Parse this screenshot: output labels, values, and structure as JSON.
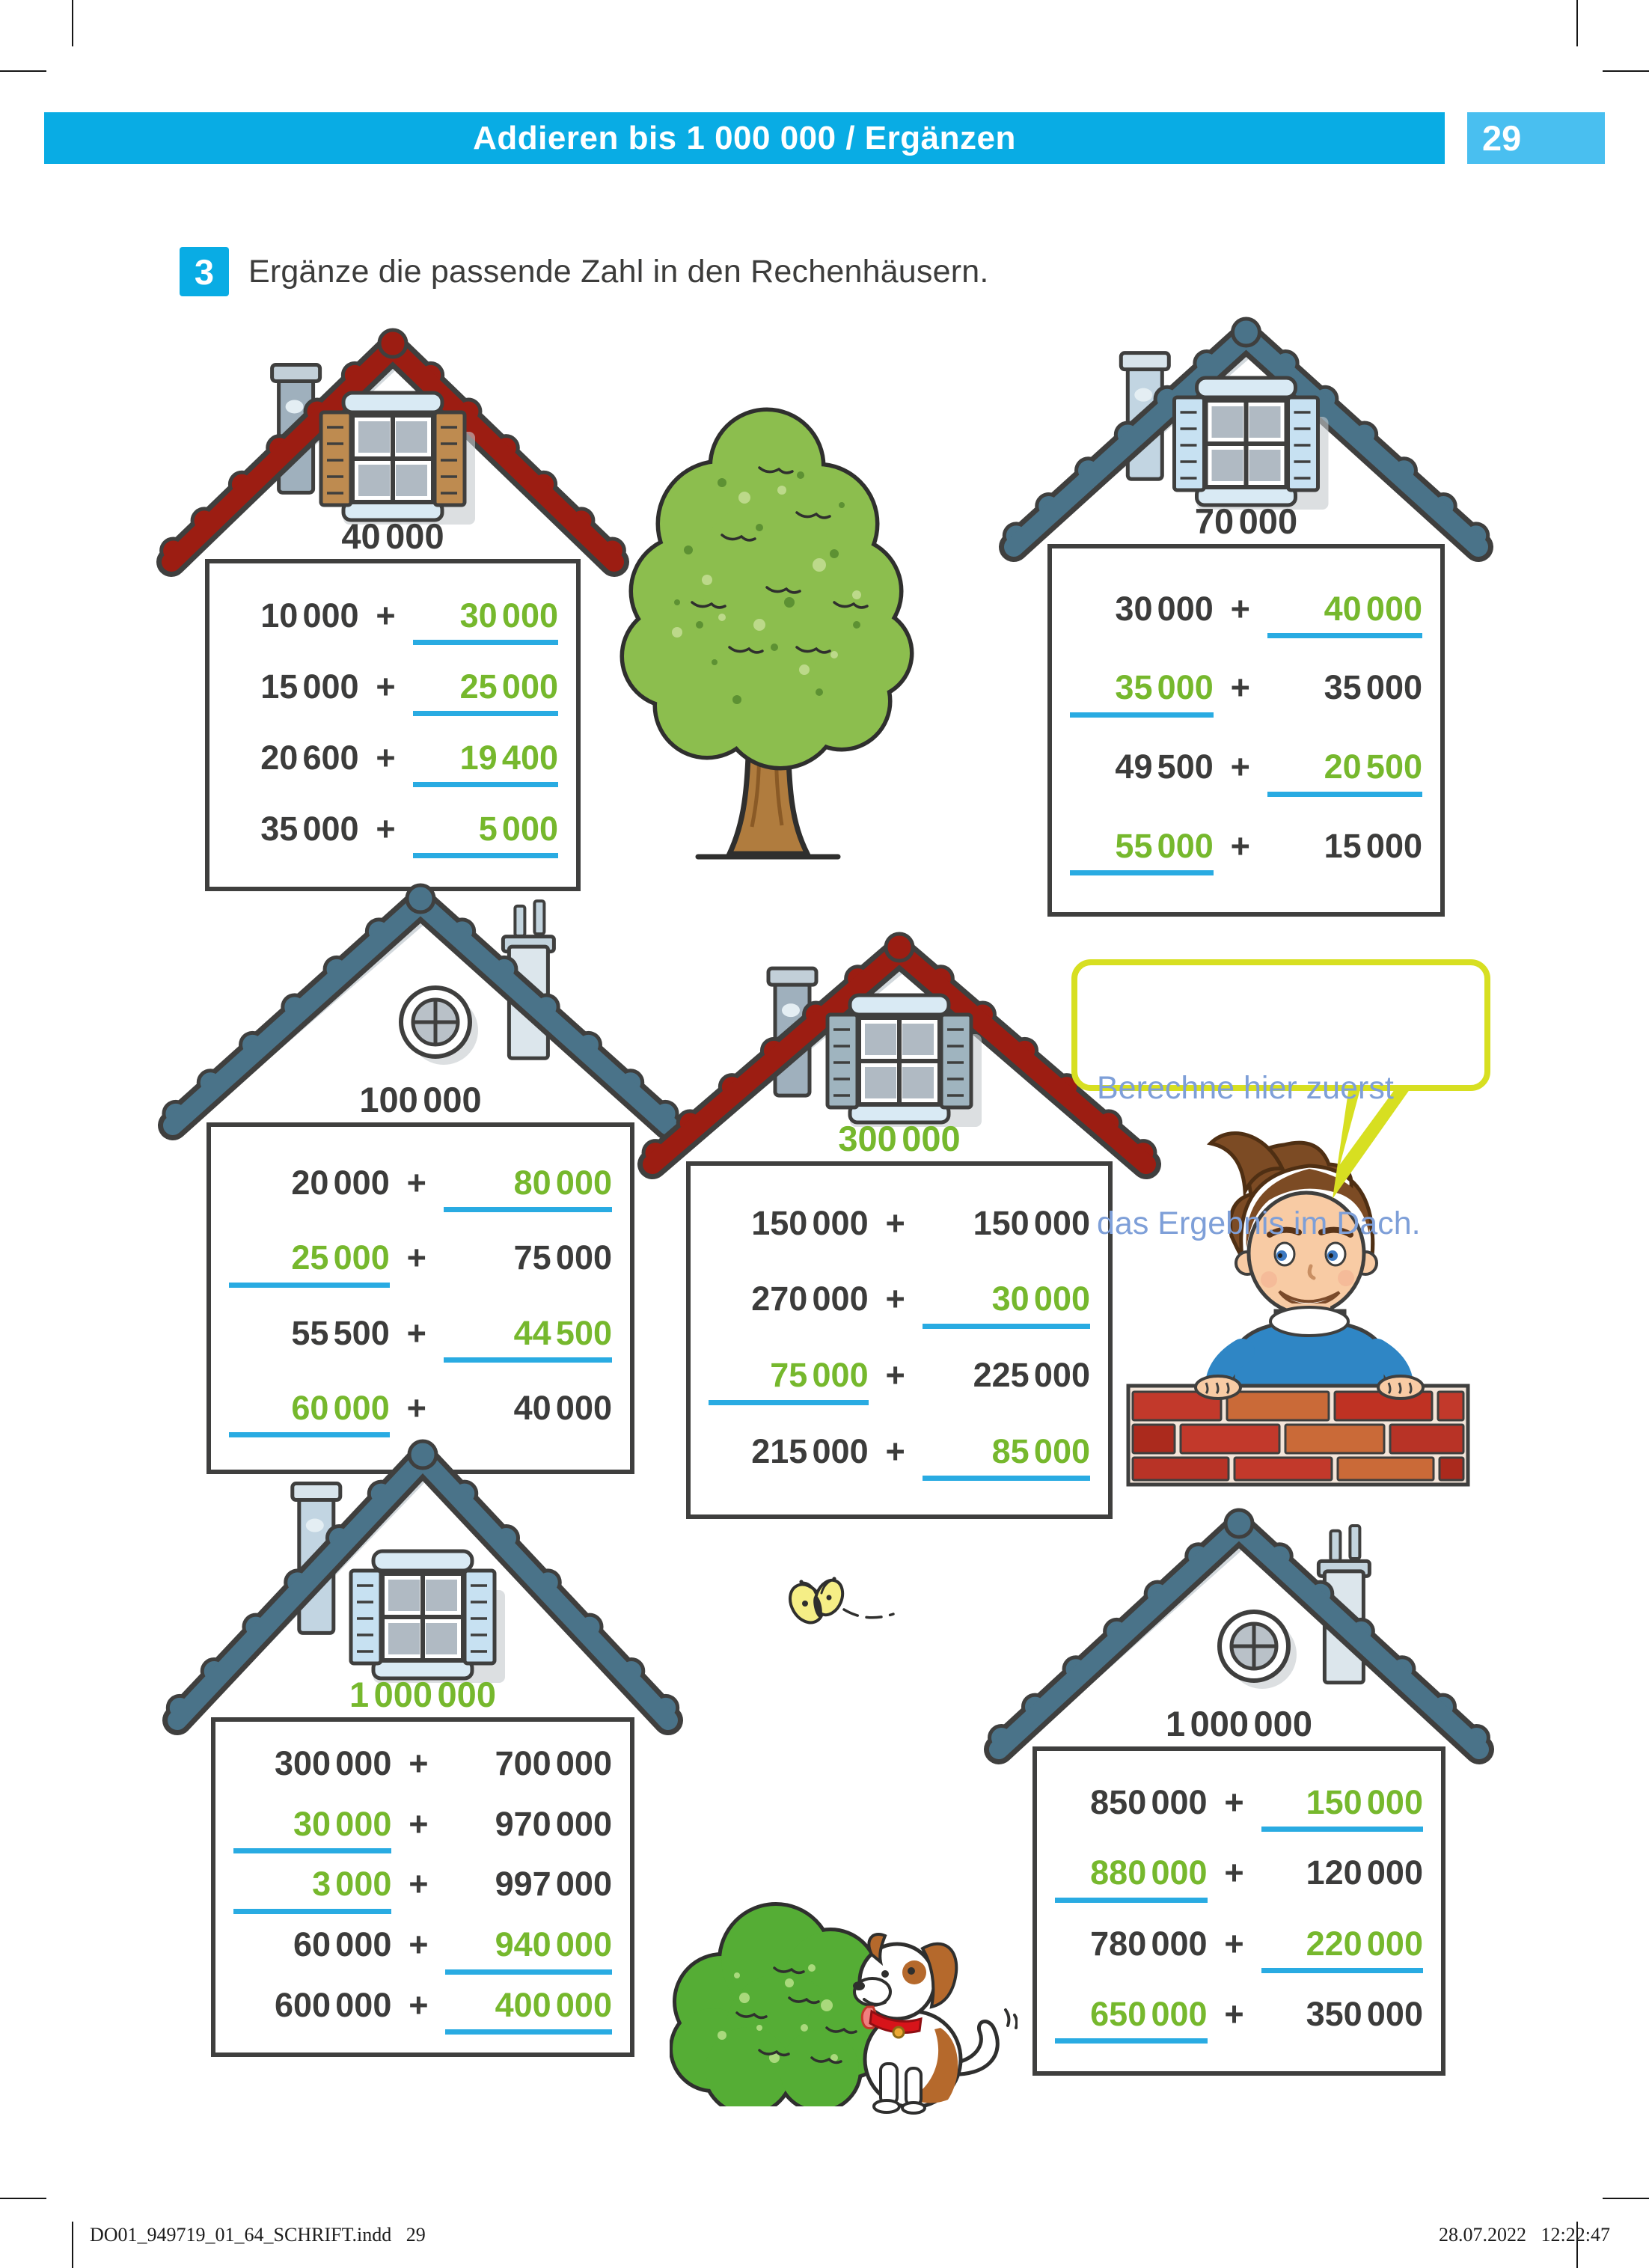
{
  "header": {
    "title": "Addieren bis 1 000 000 / Ergänzen",
    "page_number": "29"
  },
  "task": {
    "number": "3",
    "instruction": "Ergänze die passende Zahl in den Rechenhäusern."
  },
  "speech_bubble": {
    "line1": "Berechne hier zuerst",
    "line2": "das Ergebnis im Dach."
  },
  "houses": [
    {
      "roof_value": "40 000",
      "roof_value_is_answer": false,
      "roof_color": "red",
      "window": "shutters",
      "shutter_color": "brown",
      "chimney": "left",
      "rows": [
        {
          "left": "10 000",
          "left_is_answer": false,
          "right": "30 000",
          "right_is_answer": true
        },
        {
          "left": "15 000",
          "left_is_answer": false,
          "right": "25 000",
          "right_is_answer": true
        },
        {
          "left": "20 600",
          "left_is_answer": false,
          "right": "19 400",
          "right_is_answer": true
        },
        {
          "left": "35 000",
          "left_is_answer": false,
          "right": "5 000",
          "right_is_answer": true
        }
      ]
    },
    {
      "roof_value": "70 000",
      "roof_value_is_answer": false,
      "roof_color": "slate",
      "window": "shutters",
      "shutter_color": "lightblue",
      "chimney": "left",
      "rows": [
        {
          "left": "30 000",
          "left_is_answer": false,
          "right": "40 000",
          "right_is_answer": true
        },
        {
          "left": "35 000",
          "left_is_answer": true,
          "right": "35 000",
          "right_is_answer": false
        },
        {
          "left": "49 500",
          "left_is_answer": false,
          "right": "20 500",
          "right_is_answer": true
        },
        {
          "left": "55 000",
          "left_is_answer": true,
          "right": "15 000",
          "right_is_answer": false
        }
      ]
    },
    {
      "roof_value": "100 000",
      "roof_value_is_answer": false,
      "roof_color": "slate",
      "window": "round",
      "shutter_color": "",
      "chimney": "right",
      "rows": [
        {
          "left": "20 000",
          "left_is_answer": false,
          "right": "80 000",
          "right_is_answer": true
        },
        {
          "left": "25 000",
          "left_is_answer": true,
          "right": "75 000",
          "right_is_answer": false
        },
        {
          "left": "55 500",
          "left_is_answer": false,
          "right": "44 500",
          "right_is_answer": true
        },
        {
          "left": "60 000",
          "left_is_answer": true,
          "right": "40 000",
          "right_is_answer": false
        }
      ]
    },
    {
      "roof_value": "300 000",
      "roof_value_is_answer": true,
      "roof_color": "red",
      "window": "shutters",
      "shutter_color": "grayblue",
      "chimney": "left",
      "rows": [
        {
          "left": "150 000",
          "left_is_answer": false,
          "right": "150 000",
          "right_is_answer": false
        },
        {
          "left": "270 000",
          "left_is_answer": false,
          "right": "30 000",
          "right_is_answer": true
        },
        {
          "left": "75 000",
          "left_is_answer": true,
          "right": "225 000",
          "right_is_answer": false
        },
        {
          "left": "215 000",
          "left_is_answer": false,
          "right": "85 000",
          "right_is_answer": true
        }
      ]
    },
    {
      "roof_value": "1 000 000",
      "roof_value_is_answer": true,
      "roof_color": "slate",
      "window": "shutters",
      "shutter_color": "lightblue",
      "chimney": "left",
      "rows": [
        {
          "left": "300 000",
          "left_is_answer": false,
          "right": "700 000",
          "right_is_answer": false
        },
        {
          "left": "30 000",
          "left_is_answer": true,
          "right": "970 000",
          "right_is_answer": false
        },
        {
          "left": "3 000",
          "left_is_answer": true,
          "right": "997 000",
          "right_is_answer": false
        },
        {
          "left": "60 000",
          "left_is_answer": false,
          "right": "940 000",
          "right_is_answer": true
        },
        {
          "left": "600 000",
          "left_is_answer": false,
          "right": "400 000",
          "right_is_answer": true
        }
      ]
    },
    {
      "roof_value": "1 000 000",
      "roof_value_is_answer": false,
      "roof_color": "slate",
      "window": "round",
      "shutter_color": "",
      "chimney": "right",
      "rows": [
        {
          "left": "850 000",
          "left_is_answer": false,
          "right": "150 000",
          "right_is_answer": true
        },
        {
          "left": "880 000",
          "left_is_answer": true,
          "right": "120 000",
          "right_is_answer": false
        },
        {
          "left": "780 000",
          "left_is_answer": false,
          "right": "220 000",
          "right_is_answer": true
        },
        {
          "left": "650 000",
          "left_is_answer": true,
          "right": "350 000",
          "right_is_answer": false
        }
      ]
    }
  ],
  "footer": {
    "left": "DO01_949719_01_64_SCHRIFT.indd   29",
    "right": "28.07.2022   12:22:47"
  },
  "colors": {
    "header_bar": "#09ACE4",
    "page_number_box": "#49BFF0",
    "answer_green": "#76B82D",
    "underline_blue": "#29ABE2",
    "text_dark": "#3C3C3B",
    "roof_red": "#9C1D12",
    "roof_slate": "#4A7389",
    "bubble_border": "#D7DF21",
    "bubble_text": "#7E9FD8"
  }
}
